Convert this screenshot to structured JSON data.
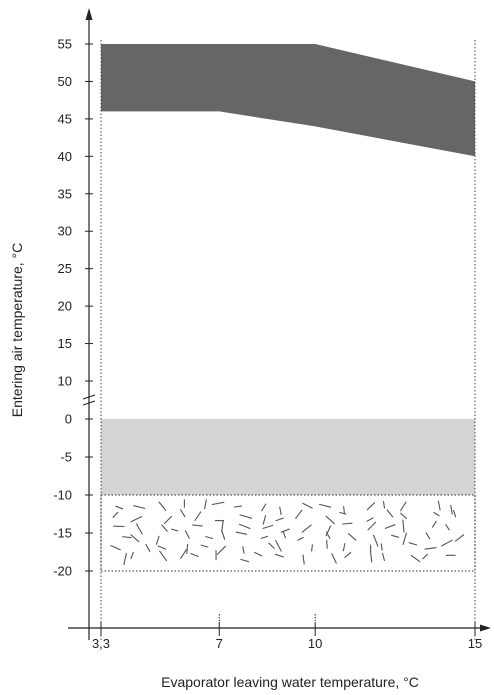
{
  "chart_data": {
    "type": "area",
    "xlabel": "Evaporator leaving water temperature, °C",
    "ylabel": "Entering air temperature, °C",
    "x_ticks": [
      3.3,
      7,
      10,
      15
    ],
    "x_tick_labels": [
      "3,3",
      "7",
      "10",
      "15"
    ],
    "y_ticks": [
      55,
      50,
      45,
      40,
      35,
      30,
      25,
      20,
      15,
      10,
      0,
      -5,
      -10,
      -15,
      -20
    ],
    "y_tick_labels": [
      "55",
      "50",
      "45",
      "40",
      "35",
      "30",
      "25",
      "20",
      "15",
      "10",
      "0",
      "-5",
      "-10",
      "-15",
      "-20"
    ],
    "y_axis_break_between": [
      10,
      0
    ],
    "grid": false,
    "regions": [
      {
        "style": "dark-gray",
        "color": "#666666",
        "upper": [
          [
            3.3,
            55
          ],
          [
            7,
            55
          ],
          [
            10,
            55
          ],
          [
            15,
            50
          ]
        ],
        "lower": [
          [
            3.3,
            46
          ],
          [
            7,
            46
          ],
          [
            10,
            44
          ],
          [
            15,
            40
          ]
        ]
      },
      {
        "style": "light-gray",
        "color": "#d4d4d4",
        "upper": [
          [
            3.3,
            0
          ],
          [
            15,
            0
          ]
        ],
        "lower": [
          [
            3.3,
            -10
          ],
          [
            15,
            -10
          ]
        ]
      },
      {
        "style": "hatched-dashes",
        "color": "#555555",
        "upper": [
          [
            3.3,
            -10
          ],
          [
            15,
            -10
          ]
        ],
        "lower": [
          [
            3.3,
            -20
          ],
          [
            15,
            -20
          ]
        ]
      }
    ]
  }
}
